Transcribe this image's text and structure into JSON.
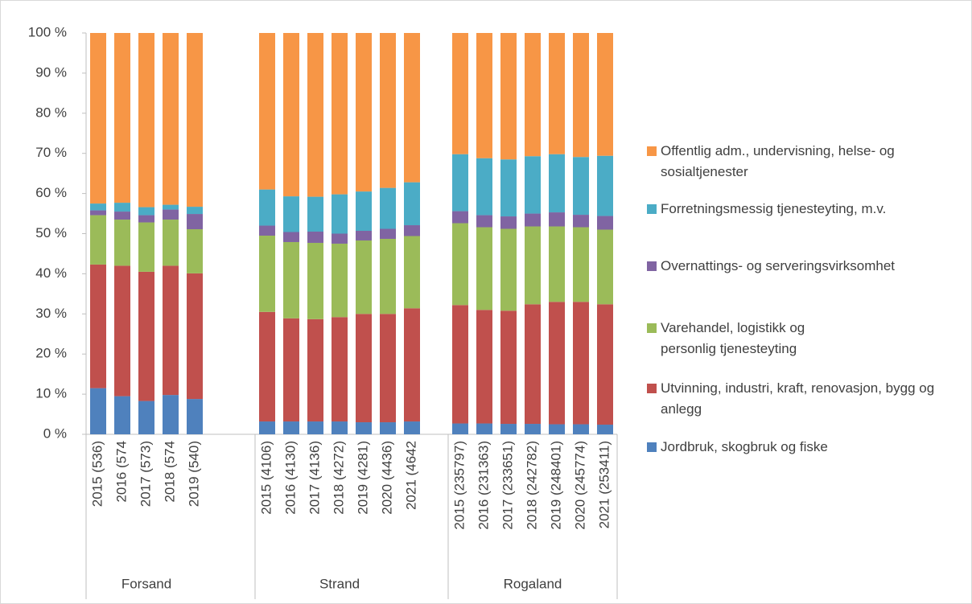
{
  "chart_data": {
    "type": "stacked_bar",
    "categories": [
      "2015 (536)",
      "2016 (574",
      "2017 (573)",
      "2018 (574",
      "2019 (540)",
      null,
      null,
      "2015 (4106)",
      "2016 (4130)",
      "2017 (4136)",
      "2018 (4272)",
      "2019 (4281)",
      "2020 (4436)",
      "2021 (4642",
      null,
      "2015 (235797)",
      "2016 (231363)",
      "2017 (233651)",
      "2018 (242782)",
      "2019 (248401)",
      "2020 (245774)",
      "2021 (253411)"
    ],
    "groups": [
      "Forsand",
      "Strand",
      "Rogaland"
    ],
    "series": [
      {
        "name": "Jordbruk, skogbruk og fiske",
        "color": "#4F81BD",
        "values": [
          11.5,
          9.5,
          8.3,
          9.8,
          8.8,
          null,
          null,
          3.2,
          3.2,
          3.2,
          3.2,
          3.0,
          3.0,
          3.2,
          null,
          2.7,
          2.7,
          2.6,
          2.6,
          2.5,
          2.5,
          2.4
        ]
      },
      {
        "name": "Utvinning, industri, kraft, renovasjon, bygg og anlegg",
        "color": "#C0504D",
        "values": [
          30.8,
          32.5,
          32.2,
          32.2,
          31.3,
          null,
          null,
          27.3,
          25.7,
          25.5,
          26.0,
          27.0,
          27.0,
          28.2,
          null,
          29.5,
          28.3,
          28.2,
          29.8,
          30.5,
          30.5,
          30.0
        ]
      },
      {
        "name": "Varehandel, logistikk og personlig tjenesteyting",
        "color": "#9BBB59",
        "values": [
          12.3,
          11.5,
          12.3,
          11.5,
          11.0,
          null,
          null,
          19.0,
          19.0,
          19.0,
          18.3,
          18.3,
          18.7,
          18.0,
          null,
          20.4,
          20.6,
          20.4,
          19.4,
          18.8,
          18.6,
          18.6
        ]
      },
      {
        "name": "Overnattings- og serveringsvirksomhet",
        "color": "#8064A2",
        "values": [
          1.2,
          2.0,
          1.8,
          2.5,
          3.8,
          null,
          null,
          2.5,
          2.5,
          2.8,
          2.5,
          2.4,
          2.5,
          2.7,
          null,
          3.0,
          3.0,
          3.1,
          3.2,
          3.5,
          3.1,
          3.4
        ]
      },
      {
        "name": "Forretningsmessig tjenesteyting, m.v.",
        "color": "#4BACC6",
        "values": [
          1.7,
          2.2,
          2.0,
          1.2,
          1.8,
          null,
          null,
          9.0,
          8.9,
          8.7,
          9.8,
          9.8,
          10.2,
          10.7,
          null,
          14.2,
          14.2,
          14.2,
          14.3,
          14.5,
          14.4,
          15.0
        ]
      },
      {
        "name": "Offentlig adm., undervisning, helse- og sosialtjenester",
        "color": "#F79646",
        "values": [
          42.5,
          42.3,
          43.4,
          42.8,
          43.3,
          null,
          null,
          39.0,
          40.7,
          40.8,
          40.2,
          39.5,
          38.6,
          37.2,
          null,
          30.2,
          31.2,
          31.5,
          30.7,
          30.2,
          30.9,
          30.6
        ]
      }
    ],
    "ylim": [
      0,
      100
    ],
    "yticks": [
      {
        "value": 0,
        "label": "0 %"
      },
      {
        "value": 10,
        "label": "10 %"
      },
      {
        "value": 20,
        "label": "20 %"
      },
      {
        "value": 30,
        "label": "30 %"
      },
      {
        "value": 40,
        "label": "40 %"
      },
      {
        "value": 50,
        "label": "50 %"
      },
      {
        "value": 60,
        "label": "60 %"
      },
      {
        "value": 70,
        "label": "70 %"
      },
      {
        "value": 80,
        "label": "80 %"
      },
      {
        "value": 90,
        "label": "90 %"
      },
      {
        "value": 100,
        "label": "100 %"
      }
    ],
    "grid": false,
    "legend": "right"
  }
}
